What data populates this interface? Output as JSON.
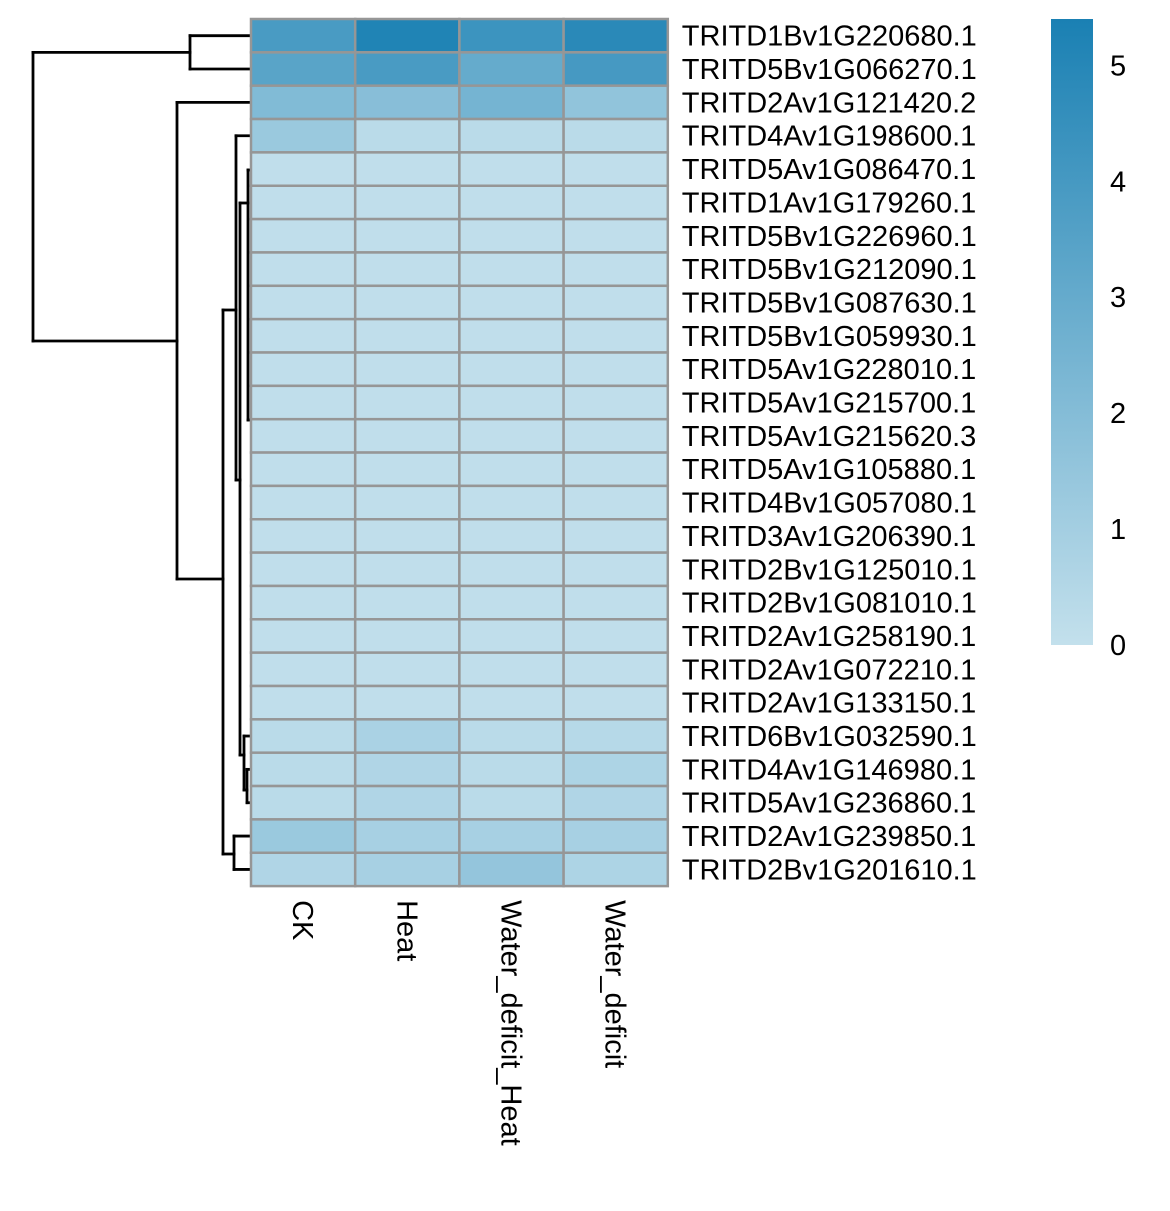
{
  "chart_data": {
    "type": "heatmap",
    "columns": [
      "CK",
      "Heat",
      "Water_deficit_Heat",
      "Water_deficit"
    ],
    "rows": [
      "TRITD1Bv1G220680.1",
      "TRITD5Bv1G066270.1",
      "TRITD2Av1G121420.2",
      "TRITD4Av1G198600.1",
      "TRITD5Av1G086470.1",
      "TRITD1Av1G179260.1",
      "TRITD5Bv1G226960.1",
      "TRITD5Bv1G212090.1",
      "TRITD5Bv1G087630.1",
      "TRITD5Bv1G059930.1",
      "TRITD5Av1G228010.1",
      "TRITD5Av1G215700.1",
      "TRITD5Av1G215620.3",
      "TRITD5Av1G105880.1",
      "TRITD4Bv1G057080.1",
      "TRITD3Av1G206390.1",
      "TRITD2Bv1G125010.1",
      "TRITD2Bv1G081010.1",
      "TRITD2Av1G258190.1",
      "TRITD2Av1G072210.1",
      "TRITD2Av1G133150.1",
      "TRITD6Bv1G032590.1",
      "TRITD4Av1G146980.1",
      "TRITD5Av1G236860.1",
      "TRITD2Av1G239850.1",
      "TRITD2Bv1G201610.1"
    ],
    "values": [
      [
        3.9,
        5.2,
        4.3,
        4.9
      ],
      [
        3.4,
        3.9,
        3.0,
        4.0
      ],
      [
        2.1,
        1.9,
        2.5,
        1.6
      ],
      [
        1.3,
        0.3,
        0.3,
        0.3
      ],
      [
        0.1,
        0.1,
        0.1,
        0.1
      ],
      [
        0.1,
        0.1,
        0.1,
        0.1
      ],
      [
        0.1,
        0.1,
        0.1,
        0.1
      ],
      [
        0.1,
        0.1,
        0.1,
        0.1
      ],
      [
        0.1,
        0.1,
        0.1,
        0.1
      ],
      [
        0.1,
        0.1,
        0.1,
        0.1
      ],
      [
        0.1,
        0.1,
        0.1,
        0.1
      ],
      [
        0.1,
        0.1,
        0.1,
        0.1
      ],
      [
        0.1,
        0.1,
        0.1,
        0.1
      ],
      [
        0.1,
        0.1,
        0.1,
        0.1
      ],
      [
        0.1,
        0.1,
        0.1,
        0.1
      ],
      [
        0.1,
        0.1,
        0.1,
        0.1
      ],
      [
        0.1,
        0.1,
        0.1,
        0.1
      ],
      [
        0.1,
        0.1,
        0.1,
        0.1
      ],
      [
        0.1,
        0.1,
        0.1,
        0.1
      ],
      [
        0.1,
        0.1,
        0.1,
        0.1
      ],
      [
        0.1,
        0.1,
        0.1,
        0.1
      ],
      [
        0.3,
        0.8,
        0.3,
        0.4
      ],
      [
        0.3,
        0.6,
        0.3,
        0.7
      ],
      [
        0.3,
        0.6,
        0.3,
        0.6
      ],
      [
        1.3,
        0.9,
        0.9,
        0.9
      ],
      [
        0.6,
        0.9,
        1.5,
        0.7
      ]
    ],
    "color_scale": {
      "min": 0,
      "max": 5.4,
      "low_color": "#c3e0ec",
      "high_color": "#1a80b3",
      "ticks": [
        0,
        1,
        2,
        3,
        4,
        5
      ]
    },
    "cell_border_color": "#969696",
    "row_dendrogram": true,
    "column_dendrogram": false,
    "legend_placement": "right"
  }
}
